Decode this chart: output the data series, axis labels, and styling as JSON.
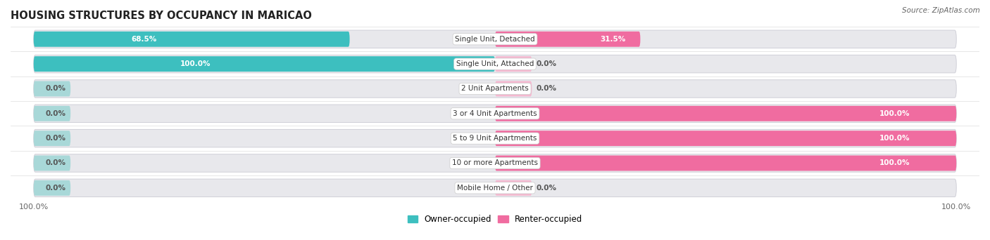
{
  "title": "HOUSING STRUCTURES BY OCCUPANCY IN MARICAO",
  "source": "Source: ZipAtlas.com",
  "categories": [
    "Single Unit, Detached",
    "Single Unit, Attached",
    "2 Unit Apartments",
    "3 or 4 Unit Apartments",
    "5 to 9 Unit Apartments",
    "10 or more Apartments",
    "Mobile Home / Other"
  ],
  "owner_pct": [
    68.5,
    100.0,
    0.0,
    0.0,
    0.0,
    0.0,
    0.0
  ],
  "renter_pct": [
    31.5,
    0.0,
    0.0,
    100.0,
    100.0,
    100.0,
    0.0
  ],
  "owner_color": "#3DBFBF",
  "renter_color": "#F06CA0",
  "owner_stub_color": "#A8D8D8",
  "renter_stub_color": "#F5B8D0",
  "track_color": "#E8E8EC",
  "track_border": "#D0D0D8",
  "title_fontsize": 10.5,
  "source_fontsize": 7.5,
  "cat_fontsize": 7.5,
  "val_fontsize": 7.5,
  "bar_height": 0.62,
  "stub_pct": 8.0,
  "figsize": [
    14.06,
    3.42
  ],
  "dpi": 100,
  "legend_fontsize": 8.5,
  "row_bg_even": "#F4F4F8",
  "row_bg_odd": "#FAFAFC"
}
